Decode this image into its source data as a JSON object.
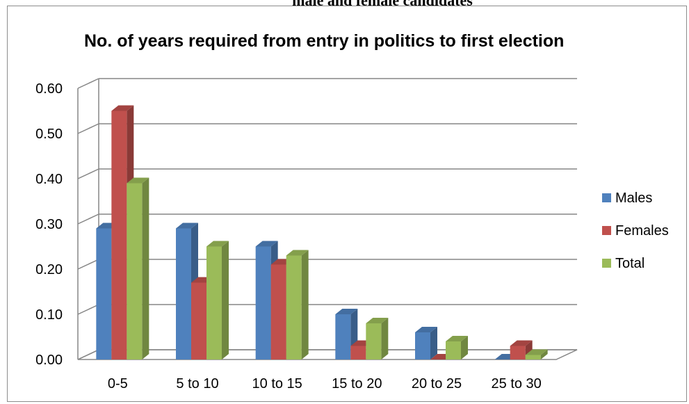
{
  "header": {
    "caption": "male and female candidates"
  },
  "chart_data": {
    "type": "bar",
    "title": "No. of years required from entry in politics to first election",
    "xlabel": "",
    "ylabel": "",
    "categories": [
      "0-5",
      "5 to 10",
      "10 to 15",
      "15 to 20",
      "20 to 25",
      "25 to 30"
    ],
    "series": [
      {
        "name": "Males",
        "values": [
          0.29,
          0.29,
          0.25,
          0.1,
          0.06,
          0.0
        ],
        "color": "#4f81bd"
      },
      {
        "name": "Females",
        "values": [
          0.55,
          0.17,
          0.21,
          0.03,
          0.0,
          0.03
        ],
        "color": "#c0504d"
      },
      {
        "name": "Total",
        "values": [
          0.39,
          0.25,
          0.23,
          0.08,
          0.04,
          0.01
        ],
        "color": "#9bbb59"
      }
    ],
    "ylim": [
      0,
      0.6
    ],
    "yticks": [
      "0.00",
      "0.10",
      "0.20",
      "0.30",
      "0.40",
      "0.50",
      "0.60"
    ],
    "grid": true,
    "legend_position": "right",
    "view": "3d-clustered"
  }
}
